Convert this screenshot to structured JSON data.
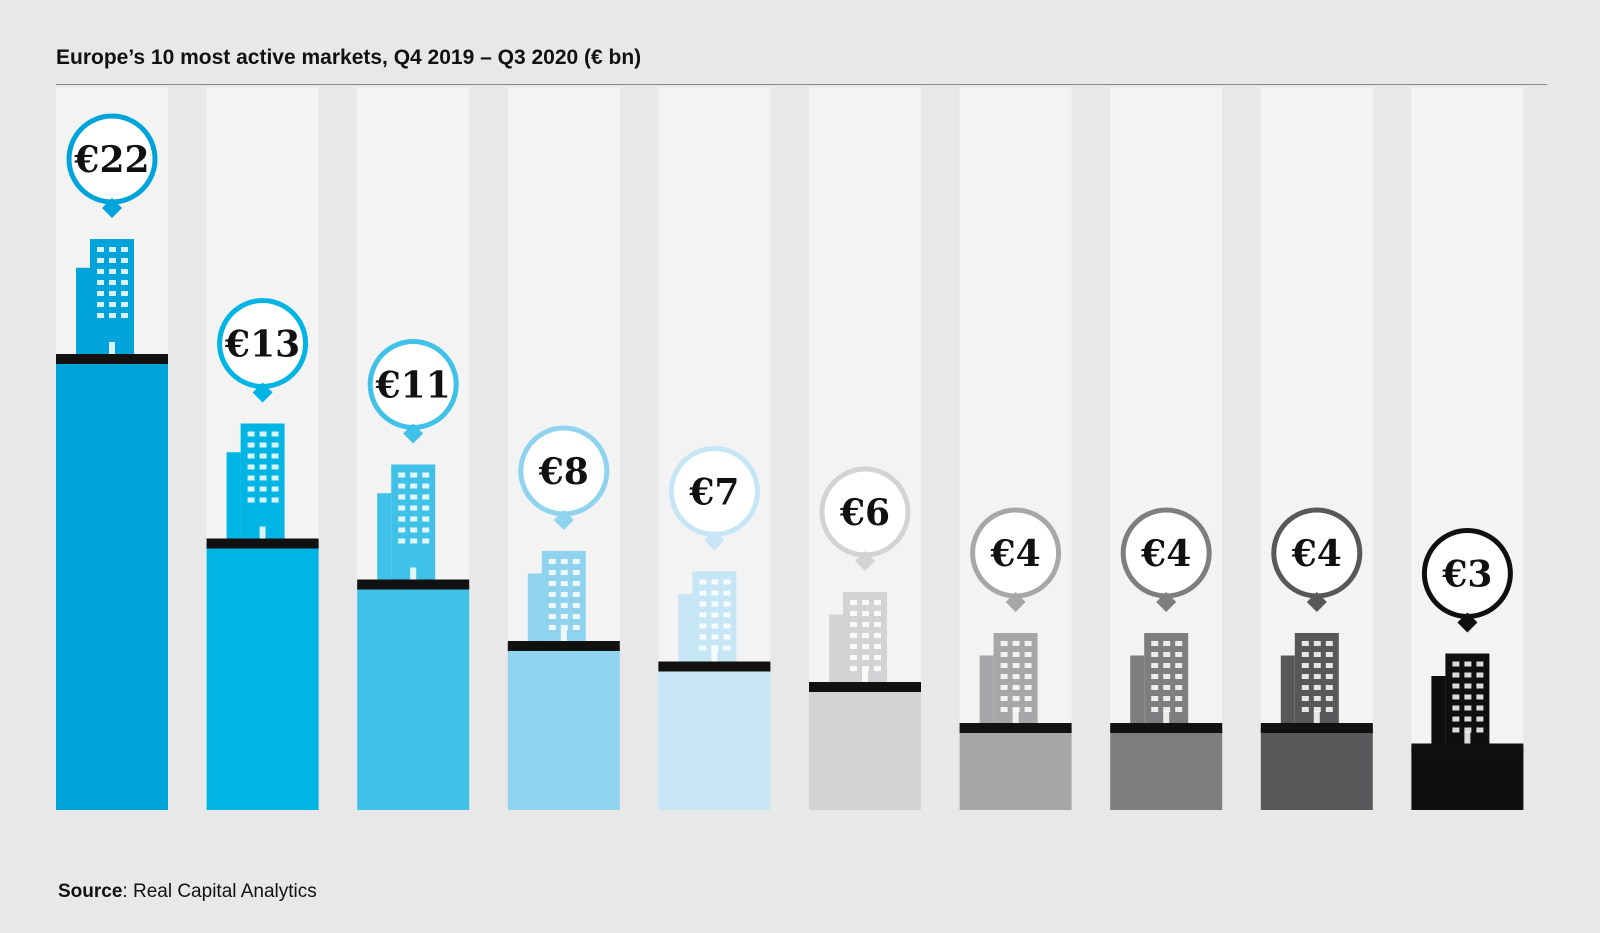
{
  "title": "Europe’s 10 most active markets, Q4 2019 – Q3 2020 (€ bn)",
  "source": {
    "label": "Source",
    "text": ": Real Capital Analytics"
  },
  "chart_data": {
    "type": "bar",
    "title": "Europe’s 10 most active markets, Q4 2019 – Q3 2020 (€ bn)",
    "unit": "€ bn",
    "values": [
      22,
      13,
      11,
      8,
      7,
      6,
      4,
      4,
      4,
      3
    ],
    "labels": [
      "€22",
      "€13",
      "€11",
      "€8",
      "€7",
      "€6",
      "€4",
      "€4",
      "€4",
      "€3"
    ],
    "colors": [
      "#00a3da",
      "#00b4e3",
      "#40c1e8",
      "#8fd3ef",
      "#c6e6f6",
      "#d3d3d5",
      "#a7a7a9",
      "#7e7e80",
      "#58585a",
      "#0f0f0f"
    ],
    "bubble_colors": [
      "#00a3da",
      "#00b4e3",
      "#40c1e8",
      "#8fd3ef",
      "#c6e6f6",
      "#d3d3d5",
      "#a7a7a9",
      "#7e7e80",
      "#58585a",
      "#0f0f0f"
    ]
  }
}
